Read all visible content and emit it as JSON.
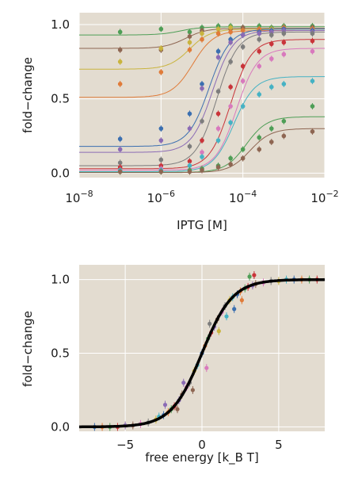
{
  "colors": {
    "plot_bg": "#e3dcd0",
    "grid": "#ffffff",
    "master_curve": "#000000",
    "palette": [
      "#3b6fb0",
      "#e07b39",
      "#4e9e56",
      "#c9343a",
      "#8b6bb5",
      "#8e6652",
      "#d879bd",
      "#7d7d7d",
      "#c9b43e",
      "#45b2c4"
    ]
  },
  "chart_data": [
    {
      "type": "scatter",
      "title": "",
      "xlabel": "IPTG [M]",
      "ylabel": "fold−change",
      "xscale": "log",
      "xlim": [
        1e-08,
        0.01
      ],
      "ylim": [
        -0.03,
        1.08
      ],
      "grid": true,
      "legend": "none",
      "xticks": [
        {
          "value": 1e-08,
          "base": "10",
          "exp": "−8"
        },
        {
          "value": 1e-06,
          "base": "10",
          "exp": "−6"
        },
        {
          "value": 0.0001,
          "base": "10",
          "exp": "−4"
        },
        {
          "value": 0.01,
          "base": "10",
          "exp": "−2"
        }
      ],
      "yticks": [
        {
          "value": 0.0,
          "label": "0.0"
        },
        {
          "value": 0.5,
          "label": "0.5"
        },
        {
          "value": 1.0,
          "label": "1.0"
        }
      ],
      "x": [
        1e-07,
        1e-06,
        5e-06,
        1e-05,
        2.5e-05,
        5e-05,
        0.0001,
        0.00025,
        0.0005,
        0.001,
        0.005
      ],
      "series": [
        {
          "color": "#4e9e56",
          "fit": {
            "leak": 0.93,
            "max": 0.985,
            "ec50": 3e-06,
            "n": 1.7
          },
          "values": [
            0.95,
            0.97,
            0.95,
            0.98,
            0.99,
            0.99,
            0.98,
            0.99,
            0.98,
            0.99,
            0.99
          ]
        },
        {
          "color": "#8e6652",
          "fit": {
            "leak": 0.84,
            "max": 0.975,
            "ec50": 4e-06,
            "n": 1.7
          },
          "values": [
            0.83,
            0.83,
            0.92,
            0.96,
            0.97,
            0.97,
            0.98,
            0.96,
            0.97,
            0.98,
            0.98
          ]
        },
        {
          "color": "#c9b43e",
          "fit": {
            "leak": 0.7,
            "max": 0.97,
            "ec50": 5e-06,
            "n": 1.7
          },
          "values": [
            0.75,
            0.84,
            0.88,
            0.94,
            0.97,
            0.98,
            0.96,
            0.97,
            0.97,
            0.96,
            0.97
          ]
        },
        {
          "color": "#e07b39",
          "fit": {
            "leak": 0.51,
            "max": 0.96,
            "ec50": 6e-06,
            "n": 1.7
          },
          "values": [
            0.6,
            0.68,
            0.83,
            0.9,
            0.94,
            0.95,
            0.96,
            0.97,
            0.96,
            0.98,
            0.97
          ]
        },
        {
          "color": "#3b6fb0",
          "fit": {
            "leak": 0.18,
            "max": 0.97,
            "ec50": 1.5e-05,
            "n": 1.7
          },
          "values": [
            0.23,
            0.3,
            0.4,
            0.6,
            0.82,
            0.9,
            0.93,
            0.95,
            0.96,
            0.97,
            0.96
          ]
        },
        {
          "color": "#8b6bb5",
          "fit": {
            "leak": 0.14,
            "max": 0.96,
            "ec50": 1.8e-05,
            "n": 1.7
          },
          "values": [
            0.16,
            0.22,
            0.3,
            0.57,
            0.78,
            0.88,
            0.93,
            0.94,
            0.95,
            0.96,
            0.95
          ]
        },
        {
          "color": "#7d7d7d",
          "fit": {
            "leak": 0.05,
            "max": 0.95,
            "ec50": 2.3e-05,
            "n": 1.7
          },
          "values": [
            0.07,
            0.09,
            0.18,
            0.35,
            0.55,
            0.75,
            0.85,
            0.9,
            0.93,
            0.94,
            0.94
          ]
        },
        {
          "color": "#c9343a",
          "fit": {
            "leak": 0.03,
            "max": 0.9,
            "ec50": 5e-05,
            "n": 1.7
          },
          "values": [
            0.04,
            0.05,
            0.08,
            0.22,
            0.4,
            0.58,
            0.72,
            0.82,
            0.87,
            0.88,
            0.89
          ]
        },
        {
          "color": "#d879bd",
          "fit": {
            "leak": 0.02,
            "max": 0.84,
            "ec50": 7e-05,
            "n": 1.7
          },
          "values": [
            0.02,
            0.03,
            0.05,
            0.14,
            0.3,
            0.45,
            0.62,
            0.72,
            0.77,
            0.8,
            0.82
          ]
        },
        {
          "color": "#45b2c4",
          "fit": {
            "leak": 0.01,
            "max": 0.65,
            "ec50": 6e-05,
            "n": 1.7
          },
          "values": [
            0.02,
            0.02,
            0.05,
            0.11,
            0.22,
            0.34,
            0.45,
            0.53,
            0.58,
            0.6,
            0.62
          ]
        },
        {
          "color": "#4e9e56",
          "fit": {
            "leak": 0.005,
            "max": 0.38,
            "ec50": 0.00012,
            "n": 1.7
          },
          "values": [
            0.01,
            0.01,
            0.02,
            0.03,
            0.05,
            0.1,
            0.16,
            0.24,
            0.3,
            0.35,
            0.45
          ]
        },
        {
          "color": "#8e6652",
          "fit": {
            "leak": 0.004,
            "max": 0.3,
            "ec50": 0.00015,
            "n": 1.7
          },
          "values": [
            0.01,
            0.01,
            0.01,
            0.02,
            0.04,
            0.06,
            0.1,
            0.16,
            0.21,
            0.25,
            0.28
          ]
        }
      ]
    },
    {
      "type": "scatter",
      "title": "",
      "xlabel": "free energy [k_B T]",
      "ylabel": "fold−change",
      "xlim": [
        -8,
        8
      ],
      "ylim": [
        -0.03,
        1.1
      ],
      "grid": true,
      "legend": "none",
      "xticks": [
        {
          "value": -5,
          "label": "−5"
        },
        {
          "value": 0,
          "label": "0"
        },
        {
          "value": 5,
          "label": "5"
        }
      ],
      "yticks": [
        {
          "value": 0.0,
          "label": "0.0"
        },
        {
          "value": 0.5,
          "label": "0.5"
        },
        {
          "value": 1.0,
          "label": "1.0"
        }
      ],
      "master_curve": {
        "color": "#000000",
        "equation": "1/(1+exp(-F))",
        "x_range": [
          -8,
          8
        ]
      },
      "points": [
        {
          "x": -7,
          "y": 0.0
        },
        {
          "x": -6.5,
          "y": 0.0
        },
        {
          "x": -6,
          "y": 0.0
        },
        {
          "x": -5.5,
          "y": 0.0
        },
        {
          "x": -5,
          "y": 0.01
        },
        {
          "x": -4.5,
          "y": 0.01
        },
        {
          "x": -4,
          "y": 0.02
        },
        {
          "x": -3.5,
          "y": 0.03
        },
        {
          "x": -3,
          "y": 0.05
        },
        {
          "x": -2.8,
          "y": 0.07
        },
        {
          "x": -2.5,
          "y": 0.08
        },
        {
          "x": -2.2,
          "y": 0.1
        },
        {
          "x": -2,
          "y": 0.12
        },
        {
          "x": -1.8,
          "y": 0.14
        },
        {
          "x": -1.5,
          "y": 0.18
        },
        {
          "x": -1.3,
          "y": 0.22
        },
        {
          "x": -1,
          "y": 0.27
        },
        {
          "x": -0.8,
          "y": 0.3
        },
        {
          "x": -0.5,
          "y": 0.38
        },
        {
          "x": -0.3,
          "y": 0.42
        },
        {
          "x": 0,
          "y": 0.5
        },
        {
          "x": 0.2,
          "y": 0.55
        },
        {
          "x": 0.4,
          "y": 0.6
        },
        {
          "x": 0.6,
          "y": 0.64
        },
        {
          "x": 0.8,
          "y": 0.68
        },
        {
          "x": 1,
          "y": 0.73
        },
        {
          "x": 1.3,
          "y": 0.78
        },
        {
          "x": 1.5,
          "y": 0.82
        },
        {
          "x": 1.8,
          "y": 0.86
        },
        {
          "x": 2,
          "y": 0.88
        },
        {
          "x": 2.3,
          "y": 0.9
        },
        {
          "x": 2.5,
          "y": 0.92
        },
        {
          "x": 2.8,
          "y": 0.94
        },
        {
          "x": 3,
          "y": 0.95
        },
        {
          "x": 3.3,
          "y": 0.96
        },
        {
          "x": 3.5,
          "y": 0.97
        },
        {
          "x": 4,
          "y": 0.98
        },
        {
          "x": 4.5,
          "y": 0.99
        },
        {
          "x": 5,
          "y": 0.99
        },
        {
          "x": 5.5,
          "y": 1.0
        },
        {
          "x": 6,
          "y": 1.0
        },
        {
          "x": 6.5,
          "y": 1.0
        },
        {
          "x": 7,
          "y": 1.0
        },
        {
          "x": 7.5,
          "y": 1.0
        },
        {
          "x": -1.2,
          "y": 0.3
        },
        {
          "x": -0.6,
          "y": 0.25
        },
        {
          "x": 0.3,
          "y": 0.4
        },
        {
          "x": 0.5,
          "y": 0.7
        },
        {
          "x": 1.1,
          "y": 0.65
        },
        {
          "x": 1.6,
          "y": 0.75
        },
        {
          "x": 2.1,
          "y": 0.8
        },
        {
          "x": 2.6,
          "y": 0.86
        },
        {
          "x": 3.1,
          "y": 1.02
        },
        {
          "x": 3.4,
          "y": 1.03
        },
        {
          "x": -2.4,
          "y": 0.15
        },
        {
          "x": -1.6,
          "y": 0.12
        }
      ]
    }
  ]
}
